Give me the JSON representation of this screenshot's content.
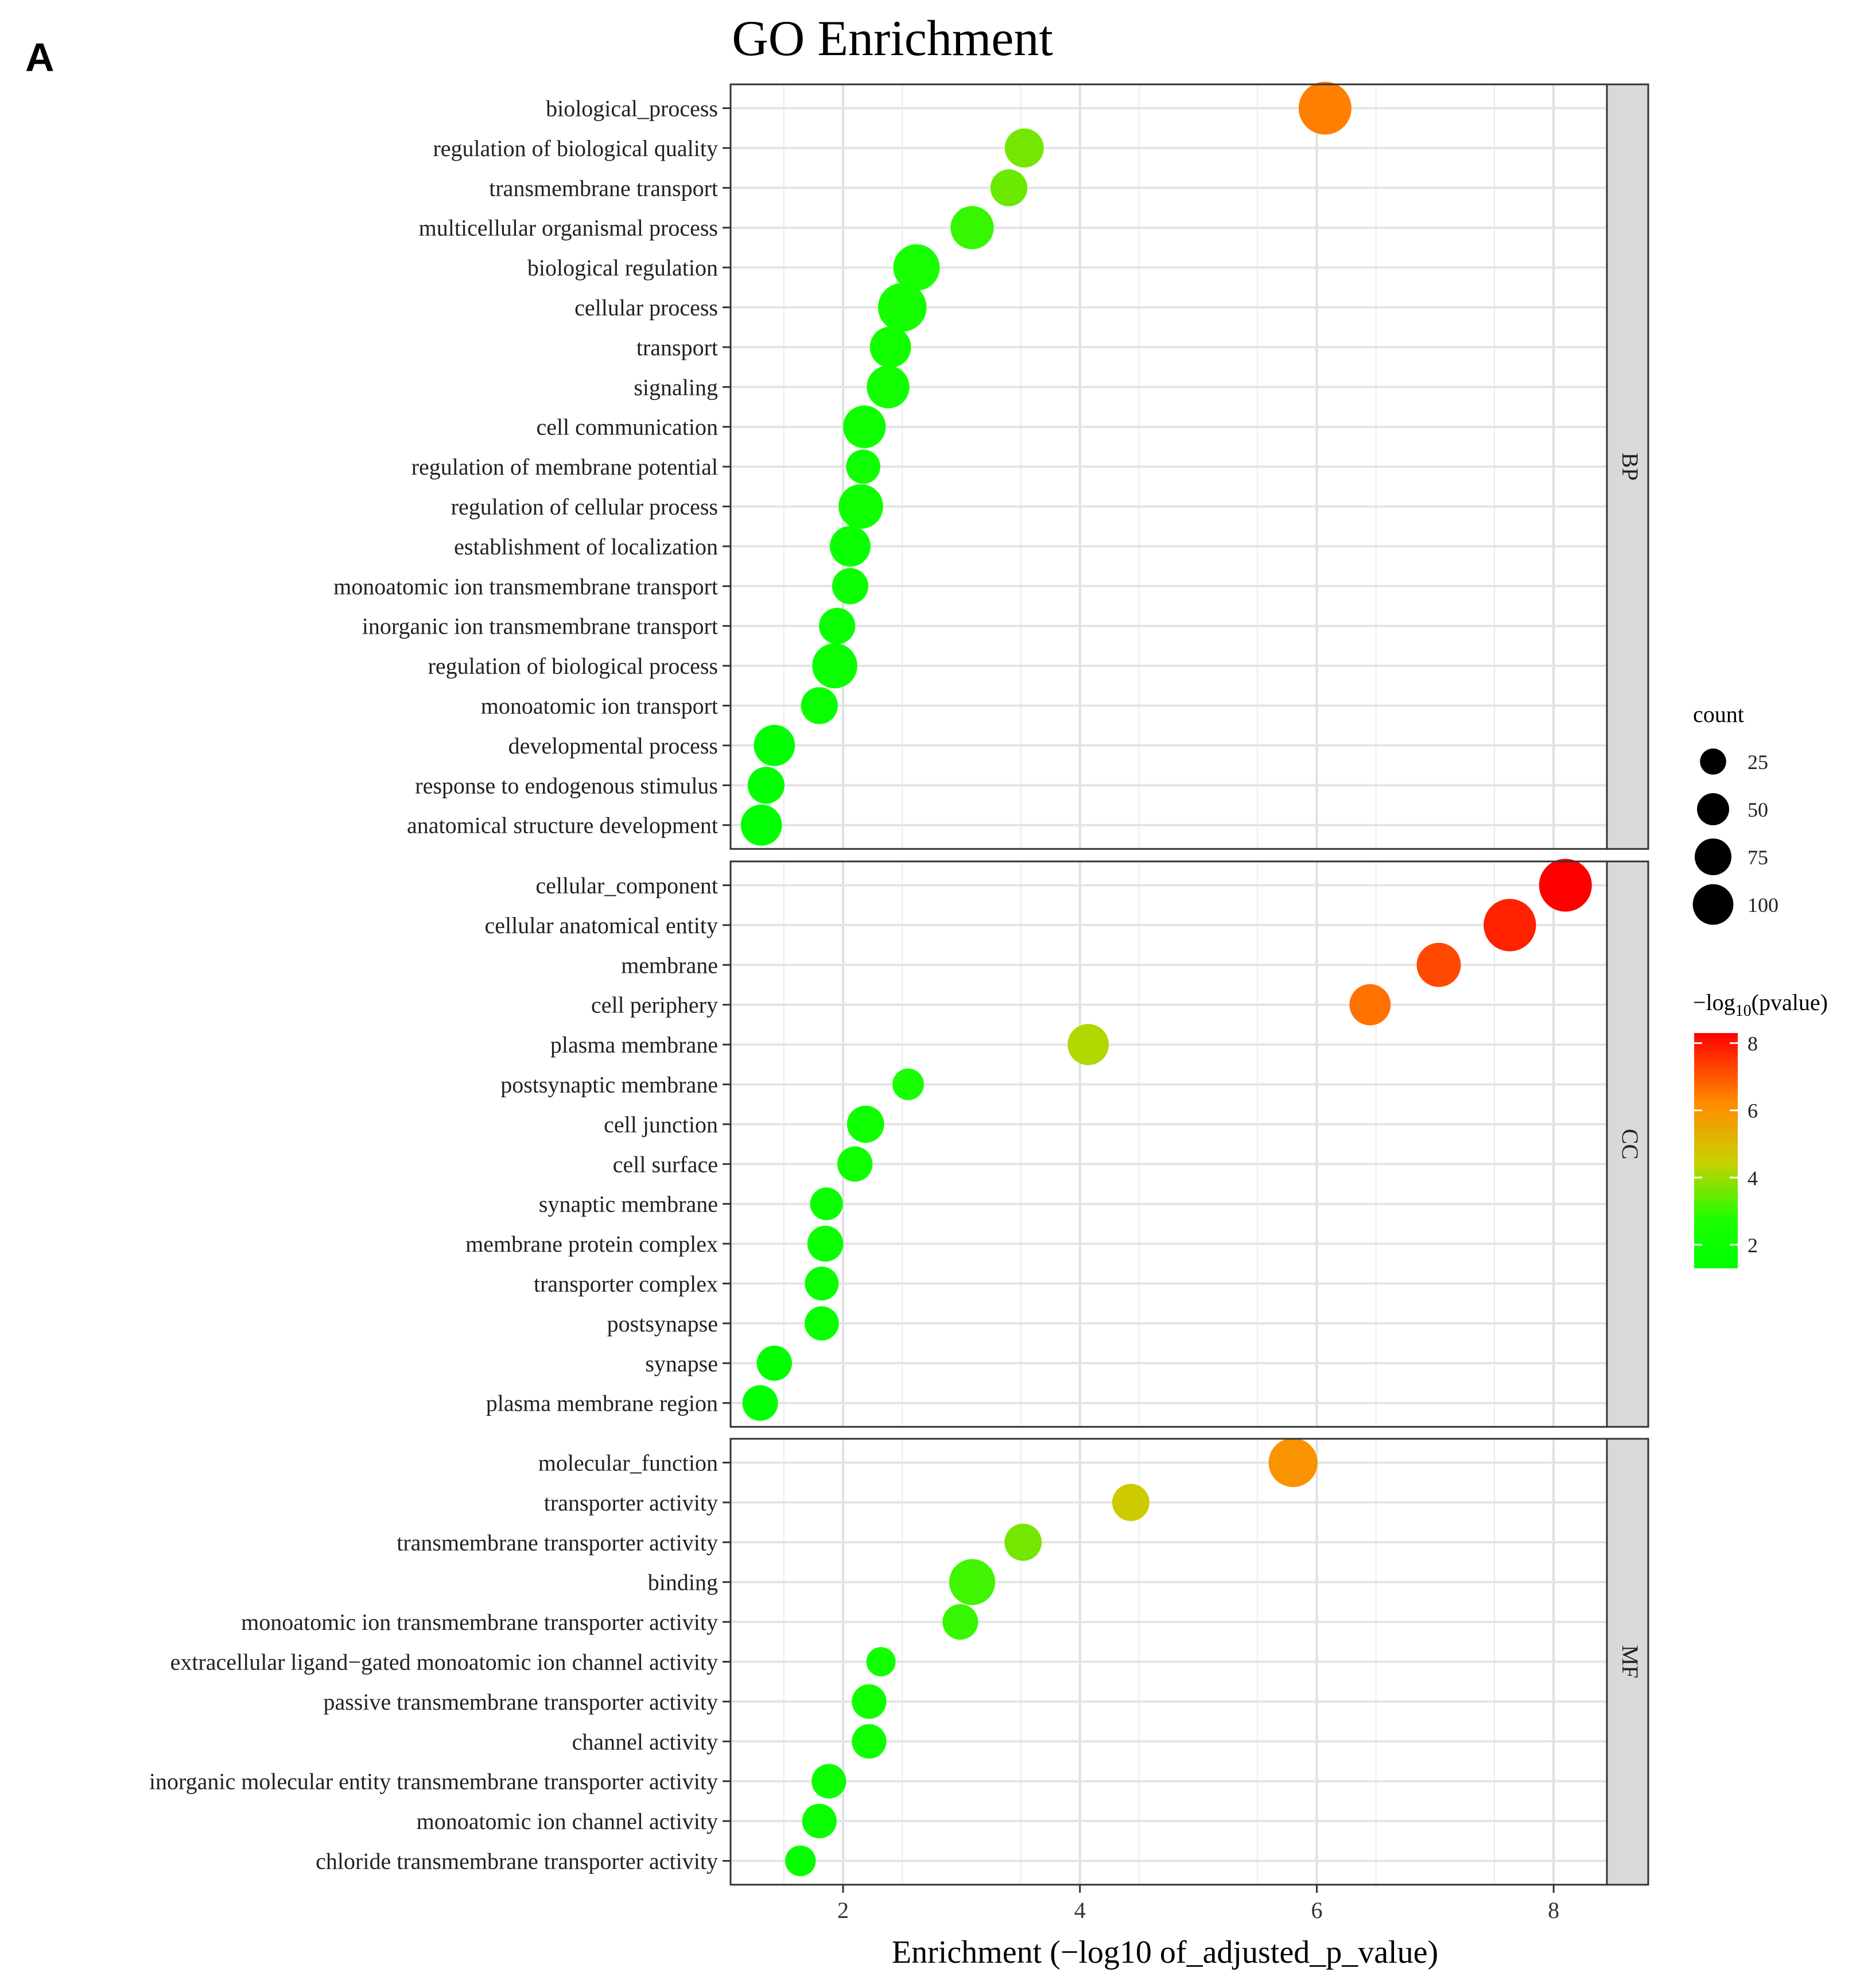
{
  "panel_label": "A",
  "chart_data": {
    "type": "scatter",
    "title": "GO Enrichment",
    "xlabel": "Enrichment (−log10 of_adjusted_p_value)",
    "ylabel": "",
    "xlim": [
      1.05,
      8.45
    ],
    "xticks": [
      2,
      4,
      6,
      8
    ],
    "grid": true,
    "facets": [
      {
        "name": "BP",
        "points": [
          {
            "term": "biological_process",
            "x": 6.07,
            "count": 104,
            "neglog10p": 6.4
          },
          {
            "term": "regulation of biological quality",
            "x": 3.53,
            "count": 42,
            "neglog10p": 3.6
          },
          {
            "term": "transmembrane transport",
            "x": 3.4,
            "count": 35,
            "neglog10p": 3.5
          },
          {
            "term": "multicellular organismal process",
            "x": 3.09,
            "count": 58,
            "neglog10p": 3.0
          },
          {
            "term": "biological regulation",
            "x": 2.62,
            "count": 72,
            "neglog10p": 2.6
          },
          {
            "term": "cellular process",
            "x": 2.5,
            "count": 82,
            "neglog10p": 2.5
          },
          {
            "term": "transport",
            "x": 2.4,
            "count": 50,
            "neglog10p": 2.3
          },
          {
            "term": "signaling",
            "x": 2.38,
            "count": 56,
            "neglog10p": 2.3
          },
          {
            "term": "cell communication",
            "x": 2.18,
            "count": 56,
            "neglog10p": 2.2
          },
          {
            "term": "regulation of membrane potential",
            "x": 2.17,
            "count": 27,
            "neglog10p": 2.1
          },
          {
            "term": "regulation of cellular process",
            "x": 2.15,
            "count": 64,
            "neglog10p": 2.1
          },
          {
            "term": "establishment of localization",
            "x": 2.06,
            "count": 48,
            "neglog10p": 2.0
          },
          {
            "term": "monoatomic ion transmembrane transport",
            "x": 2.06,
            "count": 33,
            "neglog10p": 2.0
          },
          {
            "term": "inorganic ion transmembrane transport",
            "x": 1.95,
            "count": 33,
            "neglog10p": 1.9
          },
          {
            "term": "regulation of biological process",
            "x": 1.93,
            "count": 66,
            "neglog10p": 1.9
          },
          {
            "term": "monoatomic ion transport",
            "x": 1.8,
            "count": 35,
            "neglog10p": 1.8
          },
          {
            "term": "developmental process",
            "x": 1.42,
            "count": 50,
            "neglog10p": 1.4
          },
          {
            "term": "response to endogenous stimulus",
            "x": 1.35,
            "count": 35,
            "neglog10p": 1.3
          },
          {
            "term": "anatomical structure development",
            "x": 1.31,
            "count": 50,
            "neglog10p": 1.3
          }
        ]
      },
      {
        "name": "CC",
        "points": [
          {
            "term": "cellular_component",
            "x": 8.1,
            "count": 104,
            "neglog10p": 8.3
          },
          {
            "term": "cellular anatomical entity",
            "x": 7.63,
            "count": 102,
            "neglog10p": 7.8
          },
          {
            "term": "membrane",
            "x": 7.03,
            "count": 62,
            "neglog10p": 7.2
          },
          {
            "term": "cell periphery",
            "x": 6.45,
            "count": 50,
            "neglog10p": 6.6
          },
          {
            "term": "plasma membrane",
            "x": 4.07,
            "count": 50,
            "neglog10p": 4.2
          },
          {
            "term": "postsynaptic membrane",
            "x": 2.55,
            "count": 20,
            "neglog10p": 2.6
          },
          {
            "term": "cell junction",
            "x": 2.19,
            "count": 36,
            "neglog10p": 2.2
          },
          {
            "term": "cell surface",
            "x": 2.1,
            "count": 30,
            "neglog10p": 2.1
          },
          {
            "term": "synaptic membrane",
            "x": 1.86,
            "count": 23,
            "neglog10p": 1.9
          },
          {
            "term": "membrane protein complex",
            "x": 1.85,
            "count": 32,
            "neglog10p": 1.9
          },
          {
            "term": "transporter complex",
            "x": 1.82,
            "count": 26,
            "neglog10p": 1.8
          },
          {
            "term": "postsynapse",
            "x": 1.82,
            "count": 27,
            "neglog10p": 1.8
          },
          {
            "term": "synapse",
            "x": 1.42,
            "count": 30,
            "neglog10p": 1.4
          },
          {
            "term": "plasma membrane region",
            "x": 1.3,
            "count": 31,
            "neglog10p": 1.3
          }
        ]
      },
      {
        "name": "MF",
        "points": [
          {
            "term": "molecular_function",
            "x": 5.8,
            "count": 84,
            "neglog10p": 6.0
          },
          {
            "term": "transporter activity",
            "x": 4.43,
            "count": 36,
            "neglog10p": 4.6
          },
          {
            "term": "transmembrane transporter activity",
            "x": 3.52,
            "count": 36,
            "neglog10p": 3.6
          },
          {
            "term": "binding",
            "x": 3.09,
            "count": 70,
            "neglog10p": 3.1
          },
          {
            "term": "monoatomic ion transmembrane transporter activity",
            "x": 2.99,
            "count": 31,
            "neglog10p": 3.0
          },
          {
            "term": "extracellular ligand−gated monoatomic ion channel activity",
            "x": 2.32,
            "count": 15,
            "neglog10p": 2.3
          },
          {
            "term": "passive transmembrane transporter activity",
            "x": 2.22,
            "count": 28,
            "neglog10p": 2.2
          },
          {
            "term": "channel activity",
            "x": 2.22,
            "count": 28,
            "neglog10p": 2.2
          },
          {
            "term": "inorganic molecular entity transmembrane transporter activity",
            "x": 1.88,
            "count": 28,
            "neglog10p": 1.9
          },
          {
            "term": "monoatomic ion channel activity",
            "x": 1.8,
            "count": 28,
            "neglog10p": 1.8
          },
          {
            "term": "chloride transmembrane transporter activity",
            "x": 1.64,
            "count": 18,
            "neglog10p": 1.6
          }
        ]
      }
    ],
    "size_legend": {
      "title": "count",
      "values": [
        25,
        50,
        75,
        100
      ]
    },
    "color_legend": {
      "title_prefix": "−log",
      "title_sub": "10",
      "title_suffix": "(pvalue)",
      "range": [
        1.3,
        8.3
      ],
      "ticks": [
        2,
        4,
        6,
        8
      ],
      "colors": [
        "#00ff00",
        "#ffff00",
        "#ff0000"
      ]
    }
  }
}
